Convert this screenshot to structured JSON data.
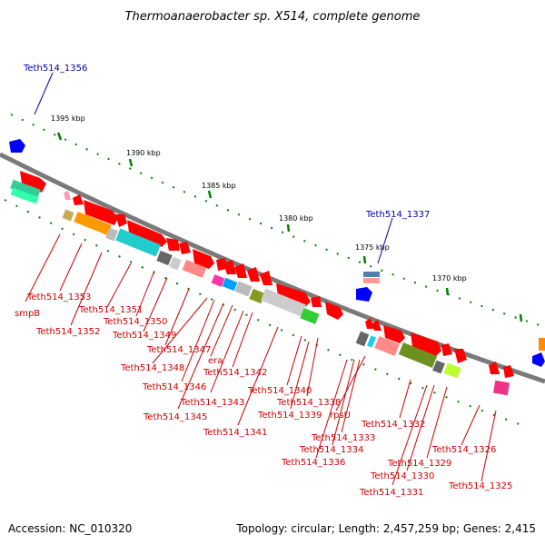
{
  "title": "Thermoanaerobacter sp. X514, complete genome",
  "footer": {
    "accession": "Accession: NC_010320",
    "topology": "Topology: circular; Length: 2,457,259 bp; Genes: 2,415"
  },
  "scale_labels": [
    "1395 kbp",
    "1390 kbp",
    "1385 kbp",
    "1380 kbp",
    "1375 kbp",
    "1370 kbp"
  ],
  "gene_labels_red": [
    "smpB",
    "Teth514_1353",
    "Teth514_1352",
    "Teth514_1351",
    "Teth514_1350",
    "Teth514_1349",
    "Teth514_1347",
    "Teth514_1348",
    "era",
    "Teth514_1342",
    "Teth514_1346",
    "Teth514_1343",
    "Teth514_1345",
    "Teth514_1341",
    "Teth514_1340",
    "Teth514_1338",
    "Teth514_1339",
    "rpsU",
    "Teth514_1332",
    "Teth514_1333",
    "Teth514_1334",
    "Teth514_1336",
    "Teth514_1329",
    "Teth514_1330",
    "Teth514_1331",
    "Teth514_1326",
    "Teth514_1325"
  ],
  "gene_labels_blue": [
    "Teth514_1356",
    "Teth514_1337"
  ],
  "colors": {
    "forward_gene": "#ff0000",
    "reverse_gene": "#0000ff",
    "backbone": "#808080",
    "tick": "#008000",
    "label_red": "#cc0000",
    "label_blue": "#0000aa"
  }
}
